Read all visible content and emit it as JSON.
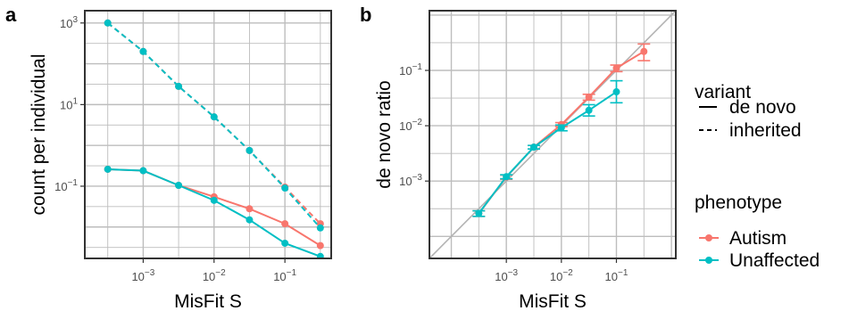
{
  "figure": {
    "panel_labels": [
      "a",
      "b"
    ],
    "x_axis_label": "MisFit S"
  },
  "legend": {
    "variant_title": "variant",
    "variant_items": [
      {
        "label": "de novo",
        "linetype": "solid"
      },
      {
        "label": "inherited",
        "linetype": "dashed"
      }
    ],
    "phenotype_title": "phenotype",
    "phenotype_items": [
      {
        "label": "Autism",
        "color": "#F8766D"
      },
      {
        "label": "Unaffected",
        "color": "#00BFC4"
      }
    ]
  },
  "chart_data": [
    {
      "panel": "a",
      "type": "line",
      "title": "",
      "xlabel": "MisFit S",
      "ylabel": "count per individual",
      "xscale": "log10",
      "yscale": "log10",
      "xlim": [
        0.00015,
        0.45
      ],
      "ylim": [
        0.0017,
        2000
      ],
      "xticks": [
        {
          "value": 0.001,
          "label": "10",
          "exp": "−3"
        },
        {
          "value": 0.01,
          "label": "10",
          "exp": "−2"
        },
        {
          "value": 0.1,
          "label": "10",
          "exp": "−1"
        }
      ],
      "yticks": [
        {
          "value": 0.1,
          "label": "10",
          "exp": "−1"
        },
        {
          "value": 10,
          "label": "10",
          "exp": "1"
        },
        {
          "value": 1000,
          "label": "10",
          "exp": "3"
        }
      ],
      "grid": true,
      "x": [
        0.000316,
        0.001,
        0.00316,
        0.01,
        0.0316,
        0.1,
        0.316
      ],
      "series": [
        {
          "phenotype": "Autism",
          "variant": "de novo",
          "color": "#F8766D",
          "linetype": "solid",
          "values": [
            0.26,
            0.24,
            0.105,
            0.055,
            0.028,
            0.012,
            0.0035
          ]
        },
        {
          "phenotype": "Unaffected",
          "variant": "de novo",
          "color": "#00BFC4",
          "linetype": "solid",
          "values": [
            0.26,
            0.24,
            0.105,
            0.045,
            0.015,
            0.004,
            0.0019
          ]
        },
        {
          "phenotype": "Autism",
          "variant": "inherited",
          "color": "#F8766D",
          "linetype": "dashed",
          "values": [
            1000,
            200,
            28,
            5,
            0.75,
            0.095,
            0.012
          ]
        },
        {
          "phenotype": "Unaffected",
          "variant": "inherited",
          "color": "#00BFC4",
          "linetype": "dashed",
          "values": [
            1000,
            200,
            28,
            5,
            0.75,
            0.09,
            0.0095
          ]
        }
      ]
    },
    {
      "panel": "b",
      "type": "line",
      "title": "",
      "xlabel": "MisFit S",
      "ylabel": "de novo ratio",
      "xscale": "log10",
      "yscale": "log10",
      "xlim": [
        4e-05,
        1.2
      ],
      "ylim": [
        4e-05,
        1.2
      ],
      "xticks": [
        {
          "value": 0.001,
          "label": "10",
          "exp": "−3"
        },
        {
          "value": 0.01,
          "label": "10",
          "exp": "−2"
        },
        {
          "value": 0.1,
          "label": "10",
          "exp": "−1"
        }
      ],
      "yticks": [
        {
          "value": 0.001,
          "label": "10",
          "exp": "−3"
        },
        {
          "value": 0.01,
          "label": "10",
          "exp": "−2"
        },
        {
          "value": 0.1,
          "label": "10",
          "exp": "−1"
        }
      ],
      "grid": true,
      "reference_line": "y = x",
      "x": [
        0.000316,
        0.001,
        0.00316,
        0.01,
        0.0316,
        0.1,
        0.316
      ],
      "series": [
        {
          "phenotype": "Autism",
          "color": "#F8766D",
          "values": [
            0.00026,
            0.00118,
            0.0041,
            0.0105,
            0.033,
            0.11,
            0.22
          ],
          "lower": [
            0.00023,
            0.00108,
            0.0038,
            0.0096,
            0.029,
            0.095,
            0.15
          ],
          "upper": [
            0.00029,
            0.00128,
            0.0044,
            0.0114,
            0.037,
            0.125,
            0.3
          ]
        },
        {
          "phenotype": "Unaffected",
          "color": "#00BFC4",
          "values": [
            0.00026,
            0.0012,
            0.0041,
            0.0092,
            0.019,
            0.041,
            null
          ],
          "lower": [
            0.00023,
            0.0011,
            0.0038,
            0.0081,
            0.015,
            0.026,
            null
          ],
          "upper": [
            0.00029,
            0.0013,
            0.0044,
            0.0103,
            0.024,
            0.065,
            null
          ]
        }
      ]
    }
  ]
}
